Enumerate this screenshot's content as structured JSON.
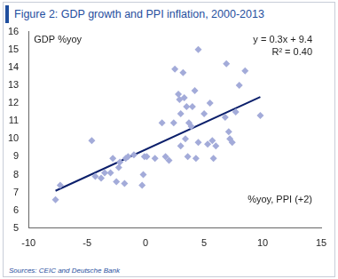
{
  "chart_data": {
    "type": "scatter",
    "title": "Figure 2: GDP growth and PPI inflation, 2000-2013",
    "source": "Sources: CEIC and Deutsche Bank",
    "xlabel": "%yoy, PPI (+2)",
    "ylabel": "GDP %yoy",
    "annotations": [
      "y = 0.3x + 9.4",
      "R² = 0.40"
    ],
    "x": [
      -7.7,
      -7.3,
      -4.6,
      -4.3,
      -3.8,
      -3.5,
      -3.0,
      -2.8,
      -2.5,
      -2.3,
      -2.2,
      -1.8,
      -1.7,
      -1.5,
      -1.0,
      -0.3,
      -0.2,
      -0.1,
      0.1,
      0.8,
      1.4,
      1.7,
      2.0,
      2.4,
      2.5,
      2.8,
      2.9,
      3.0,
      3.0,
      3.2,
      3.3,
      3.4,
      3.5,
      3.6,
      3.7,
      3.9,
      4.0,
      4.2,
      4.3,
      4.5,
      4.5,
      5.0,
      5.3,
      5.5,
      5.7,
      5.8,
      6.0,
      6.8,
      6.9,
      7.1,
      7.2,
      7.4,
      7.7,
      8.0,
      8.5,
      9.8
    ],
    "values": [
      6.6,
      7.4,
      9.9,
      7.9,
      7.8,
      8.1,
      8.1,
      8.9,
      7.6,
      8.4,
      8.7,
      7.5,
      8.9,
      9.0,
      9.1,
      7.4,
      8.0,
      9.0,
      9.0,
      8.9,
      10.9,
      9.0,
      8.8,
      10.9,
      13.9,
      12.5,
      12.2,
      11.4,
      9.6,
      13.7,
      12.3,
      10.0,
      11.8,
      9.0,
      10.9,
      10.7,
      11.8,
      12.7,
      8.9,
      9.8,
      15.0,
      11.4,
      9.7,
      12.0,
      9.9,
      8.9,
      9.6,
      11.2,
      14.2,
      10.4,
      10.0,
      9.8,
      11.5,
      13.0,
      13.8,
      11.3
    ],
    "color": "#a3abd9",
    "marker": "diamond",
    "trend": {
      "x": [
        -7.7,
        9.8
      ],
      "values": [
        7.09,
        12.34
      ],
      "color": "#0b1f6b",
      "line_style": "solid"
    },
    "xlim": [
      -10,
      15
    ],
    "xticks": [
      -10,
      -5,
      0,
      5,
      10,
      15
    ],
    "ylim": [
      5,
      16
    ],
    "yticks": [
      5,
      6,
      7,
      8,
      9,
      10,
      11,
      12,
      13,
      14,
      15,
      16
    ],
    "grid": false
  }
}
